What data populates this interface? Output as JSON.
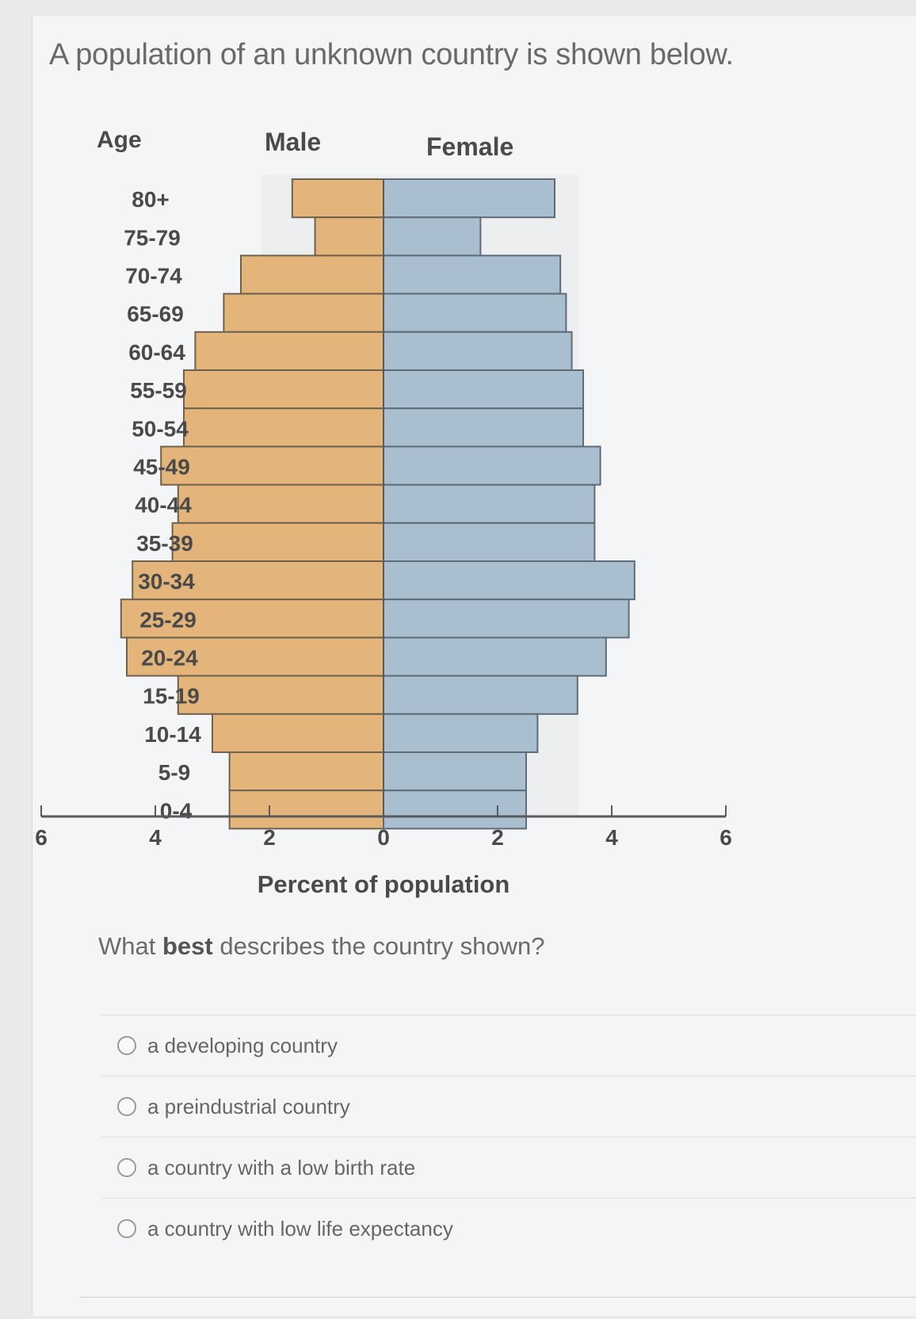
{
  "question": {
    "title": "A population of an unknown country is shown below.",
    "prompt_pre": "What ",
    "prompt_bold": "best",
    "prompt_post": " describes the country shown?",
    "options": [
      "a developing country",
      "a preindustrial country",
      "a country with a low birth rate",
      "a country with low life expectancy"
    ]
  },
  "chart_data": {
    "type": "bar",
    "orientation": "population-pyramid",
    "age_axis_title": "Age",
    "male_label": "Male",
    "female_label": "Female",
    "xlabel": "Percent of population",
    "x_ticks": [
      "6",
      "4",
      "2",
      "0",
      "2",
      "4",
      "6"
    ],
    "xlim": [
      -6,
      6
    ],
    "categories": [
      "80+",
      "75-79",
      "70-74",
      "65-69",
      "60-64",
      "55-59",
      "50-54",
      "45-49",
      "40-44",
      "35-39",
      "30-34",
      "25-29",
      "20-24",
      "15-19",
      "10-14",
      "5-9",
      "0-4"
    ],
    "series": [
      {
        "name": "Male",
        "color": "#e3b57a",
        "values": [
          1.6,
          1.2,
          2.5,
          2.8,
          3.3,
          3.5,
          3.5,
          3.9,
          3.6,
          3.7,
          4.4,
          4.6,
          4.5,
          3.6,
          3.0,
          2.7,
          2.7
        ]
      },
      {
        "name": "Female",
        "color": "#a9bfcf",
        "values": [
          3.0,
          1.7,
          3.1,
          3.2,
          3.3,
          3.5,
          3.5,
          3.8,
          3.7,
          3.7,
          4.4,
          4.3,
          3.9,
          3.4,
          2.7,
          2.5,
          2.5
        ]
      }
    ]
  }
}
